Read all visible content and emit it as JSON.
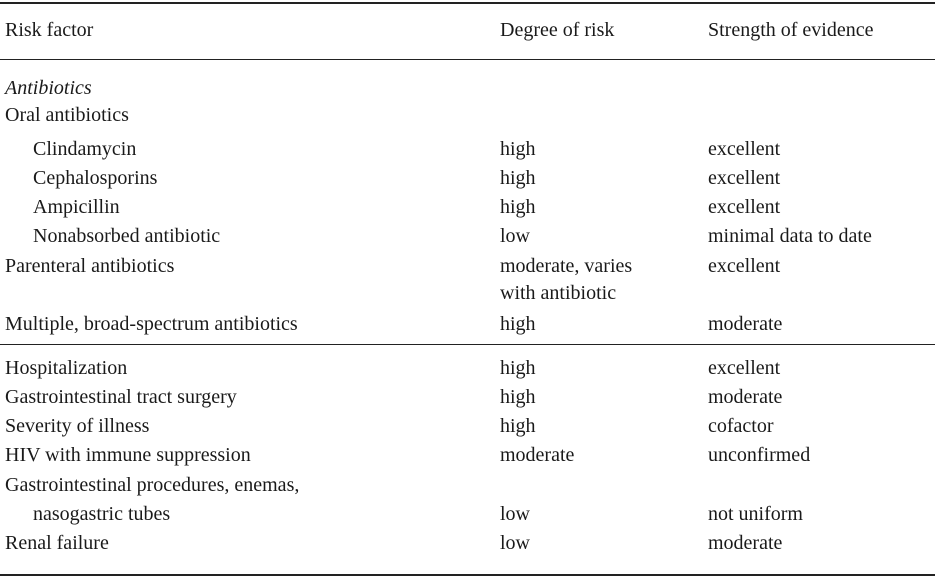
{
  "table": {
    "headers": {
      "risk_factor": "Risk factor",
      "degree_of_risk": "Degree of risk",
      "strength_of_evidence": "Strength of evidence"
    },
    "antibiotics_heading": "Antibiotics",
    "oral_heading": "Oral antibiotics",
    "rows_antibiotics": [
      {
        "factor": "Clindamycin",
        "degree": "high",
        "evidence": "excellent"
      },
      {
        "factor": "Cephalosporins",
        "degree": "high",
        "evidence": "excellent"
      },
      {
        "factor": "Ampicillin",
        "degree": "high",
        "evidence": "excellent"
      },
      {
        "factor": "Nonabsorbed antibiotic",
        "degree": "low",
        "evidence": "minimal data to date"
      },
      {
        "factor": "Parenteral antibiotics",
        "degree": "moderate, varies",
        "degree_cont": "with antibiotic",
        "evidence": "excellent"
      },
      {
        "factor": "Multiple, broad-spectrum antibiotics",
        "degree": "high",
        "evidence": "moderate"
      }
    ],
    "rows_other": [
      {
        "factor": "Hospitalization",
        "degree": "high",
        "evidence": "excellent"
      },
      {
        "factor": "Gastrointestinal tract surgery",
        "degree": "high",
        "evidence": "moderate"
      },
      {
        "factor": "Severity of illness",
        "degree": "high",
        "evidence": "cofactor"
      },
      {
        "factor": "HIV with immune suppression",
        "degree": "moderate",
        "evidence": "unconfirmed"
      },
      {
        "factor": "Gastrointestinal procedures, enemas,",
        "factor_cont": "nasogastric tubes",
        "degree": "low",
        "evidence": "not uniform"
      },
      {
        "factor": "Renal failure",
        "degree": "low",
        "evidence": "moderate"
      }
    ]
  }
}
